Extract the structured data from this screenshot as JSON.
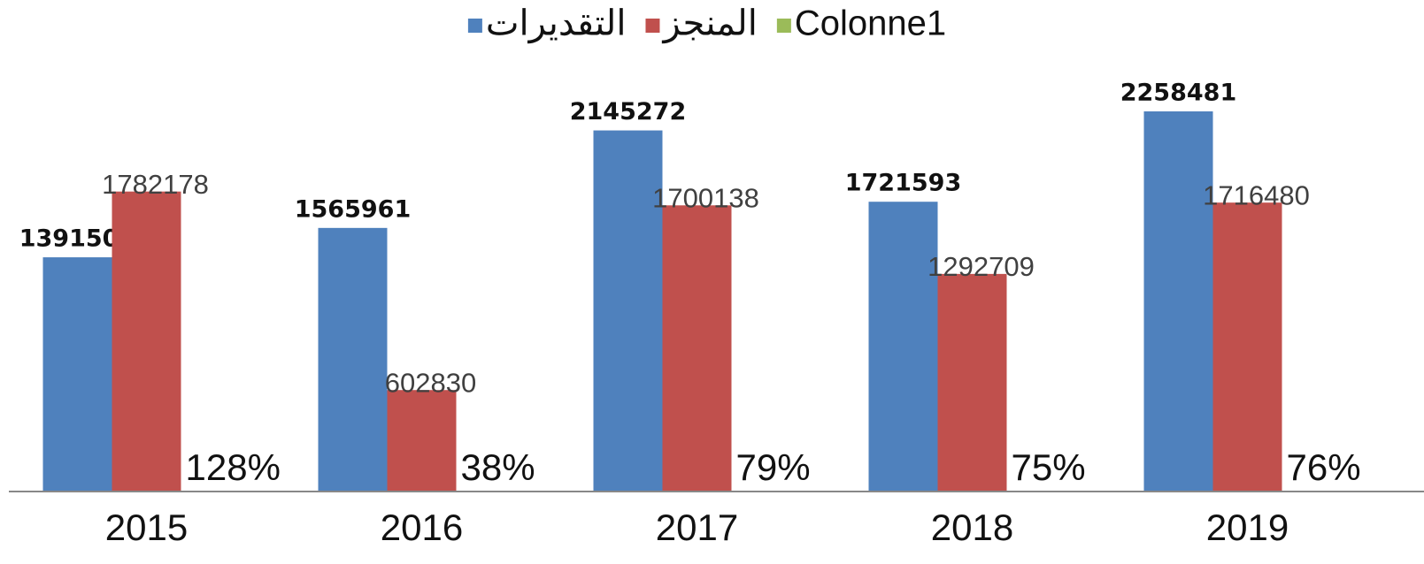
{
  "chart_data": {
    "type": "bar",
    "categories": [
      "2015",
      "2016",
      "2017",
      "2018",
      "2019"
    ],
    "series": [
      {
        "name": "التقديرات",
        "color": "#4f81bd",
        "values": [
          1391501,
          1565961,
          2145272,
          1721593,
          2258481
        ]
      },
      {
        "name": "المنجز",
        "color": "#c0504d",
        "values": [
          1782178,
          602830,
          1700138,
          1292709,
          1716480
        ]
      },
      {
        "name": "Colonne1",
        "color": "#9bbb59",
        "values": [
          128,
          38,
          79,
          75,
          76
        ],
        "value_labels": [
          "128%",
          "38%",
          "79%",
          "75%",
          "76%"
        ]
      }
    ],
    "ylim": [
      0,
      2500000
    ],
    "legend": "top"
  }
}
